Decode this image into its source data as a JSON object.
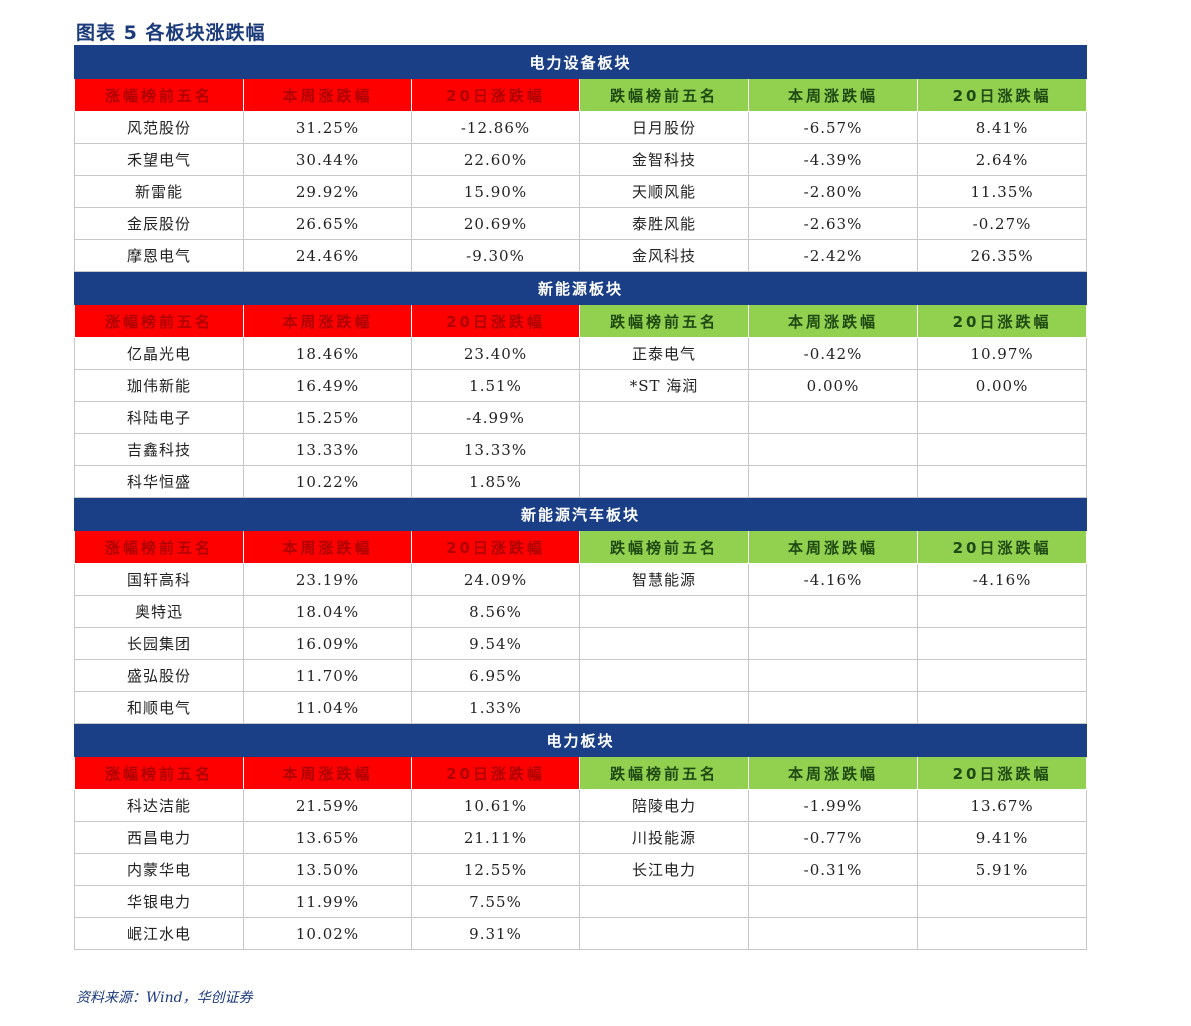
{
  "figure_title": "图表 5   各板块涨跌幅",
  "source": "资料来源：Wind，华创证券",
  "headers": {
    "gain_top5": "涨幅榜前五名",
    "week_change": "本周涨跌幅",
    "day20_change": "20日涨跌幅",
    "loss_top5": "跌幅榜前五名"
  },
  "colors": {
    "section_bg": "#1b3f86",
    "gain_header_bg": "#ff0000",
    "loss_header_bg": "#92d050"
  },
  "sections": [
    {
      "title": "电力设备板块",
      "rows": [
        [
          "风范股份",
          "31.25%",
          "-12.86%",
          "日月股份",
          "-6.57%",
          "8.41%"
        ],
        [
          "禾望电气",
          "30.44%",
          "22.60%",
          "金智科技",
          "-4.39%",
          "2.64%"
        ],
        [
          "新雷能",
          "29.92%",
          "15.90%",
          "天顺风能",
          "-2.80%",
          "11.35%"
        ],
        [
          "金辰股份",
          "26.65%",
          "20.69%",
          "泰胜风能",
          "-2.63%",
          "-0.27%"
        ],
        [
          "摩恩电气",
          "24.46%",
          "-9.30%",
          "金风科技",
          "-2.42%",
          "26.35%"
        ]
      ]
    },
    {
      "title": "新能源板块",
      "rows": [
        [
          "亿晶光电",
          "18.46%",
          "23.40%",
          "正泰电气",
          "-0.42%",
          "10.97%"
        ],
        [
          "珈伟新能",
          "16.49%",
          "1.51%",
          "*ST 海润",
          "0.00%",
          "0.00%"
        ],
        [
          "科陆电子",
          "15.25%",
          "-4.99%",
          "",
          "",
          ""
        ],
        [
          "吉鑫科技",
          "13.33%",
          "13.33%",
          "",
          "",
          ""
        ],
        [
          "科华恒盛",
          "10.22%",
          "1.85%",
          "",
          "",
          ""
        ]
      ]
    },
    {
      "title": "新能源汽车板块",
      "rows": [
        [
          "国轩高科",
          "23.19%",
          "24.09%",
          "智慧能源",
          "-4.16%",
          "-4.16%"
        ],
        [
          "奥特迅",
          "18.04%",
          "8.56%",
          "",
          "",
          ""
        ],
        [
          "长园集团",
          "16.09%",
          "9.54%",
          "",
          "",
          ""
        ],
        [
          "盛弘股份",
          "11.70%",
          "6.95%",
          "",
          "",
          ""
        ],
        [
          "和顺电气",
          "11.04%",
          "1.33%",
          "",
          "",
          ""
        ]
      ]
    },
    {
      "title": "电力板块",
      "rows": [
        [
          "科达洁能",
          "21.59%",
          "10.61%",
          "陪陵电力",
          "-1.99%",
          "13.67%"
        ],
        [
          "西昌电力",
          "13.65%",
          "21.11%",
          "川投能源",
          "-0.77%",
          "9.41%"
        ],
        [
          "内蒙华电",
          "13.50%",
          "12.55%",
          "长江电力",
          "-0.31%",
          "5.91%"
        ],
        [
          "华银电力",
          "11.99%",
          "7.55%",
          "",
          "",
          ""
        ],
        [
          "岷江水电",
          "10.02%",
          "9.31%",
          "",
          "",
          ""
        ]
      ]
    }
  ]
}
